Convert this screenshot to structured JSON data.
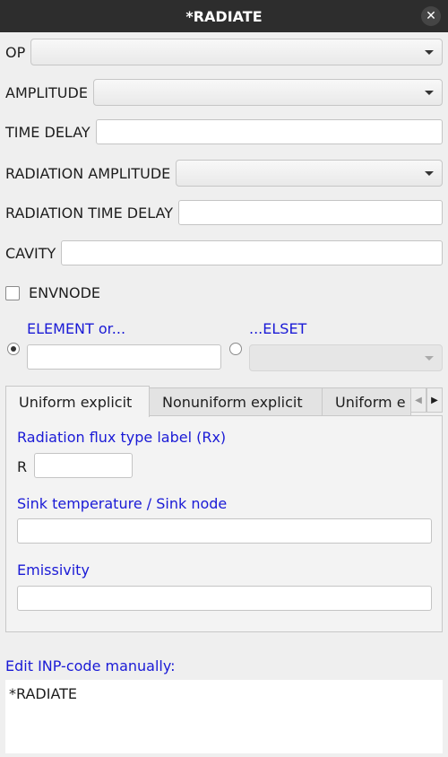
{
  "window": {
    "title": "*RADIATE",
    "close_icon": "close-icon"
  },
  "form": {
    "op_label": "OP",
    "amplitude_label": "AMPLITUDE",
    "time_delay_label": "TIME DELAY",
    "radiation_amplitude_label": "RADIATION AMPLITUDE",
    "radiation_time_delay_label": "RADIATION TIME DELAY",
    "cavity_label": "CAVITY",
    "envnode_label": "ENVNODE",
    "element_label": "ELEMENT or...",
    "elset_label": "...ELSET"
  },
  "tabs": [
    {
      "label": "Uniform explicit",
      "active": true
    },
    {
      "label": "Nonuniform explicit",
      "active": false
    },
    {
      "label": "Uniform e",
      "active": false
    }
  ],
  "tab_scroll": {
    "left_icon": "chevron-left-icon",
    "right_icon": "chevron-right-icon"
  },
  "panel": {
    "flux_label": "Radiation flux type label (Rx)",
    "r_prefix": "R",
    "sink_label": "Sink temperature / Sink node",
    "emissivity_label": "Emissivity"
  },
  "manual_edit": {
    "label": "Edit INP-code manually:",
    "code": "*RADIATE"
  },
  "colors": {
    "link_blue": "#1a1ad6",
    "titlebar": "#2d2d2d"
  }
}
